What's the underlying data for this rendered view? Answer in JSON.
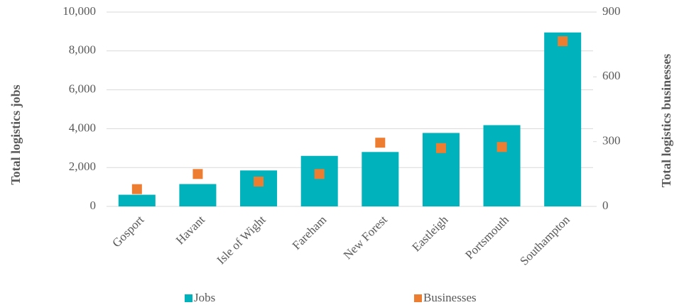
{
  "chart_data": {
    "type": "bar",
    "categories": [
      "Gosport",
      "Havant",
      "Isle of Wight",
      "Fareham",
      "New Forest",
      "Eastleigh",
      "Portsmouth",
      "Southampton"
    ],
    "series": [
      {
        "name": "Jobs",
        "color": "#00b2bb",
        "type": "bar",
        "values": [
          600,
          1150,
          1850,
          2600,
          2800,
          3780,
          4180,
          8950
        ]
      },
      {
        "name": "Businesses",
        "color": "#ed7d31",
        "type": "scatter",
        "axis": "y2",
        "values": [
          80,
          150,
          115,
          150,
          295,
          270,
          275,
          765
        ]
      }
    ],
    "ylabel": "Total logistics jobs",
    "y2label": "Total logistics businesses",
    "ylim": [
      0,
      10000
    ],
    "yticks": [
      0,
      {
        "value": 2000,
        "label": "2,000"
      },
      {
        "value": 4000,
        "label": "4,000"
      },
      {
        "value": 6000,
        "label": "6,000"
      },
      {
        "value": 8000,
        "label": "8,000"
      },
      {
        "value": 10000,
        "label": "10,000"
      }
    ],
    "y2lim": [
      0,
      900
    ],
    "y2ticks": [
      0,
      300,
      600,
      900
    ],
    "grid": true,
    "legend": "bottom"
  }
}
